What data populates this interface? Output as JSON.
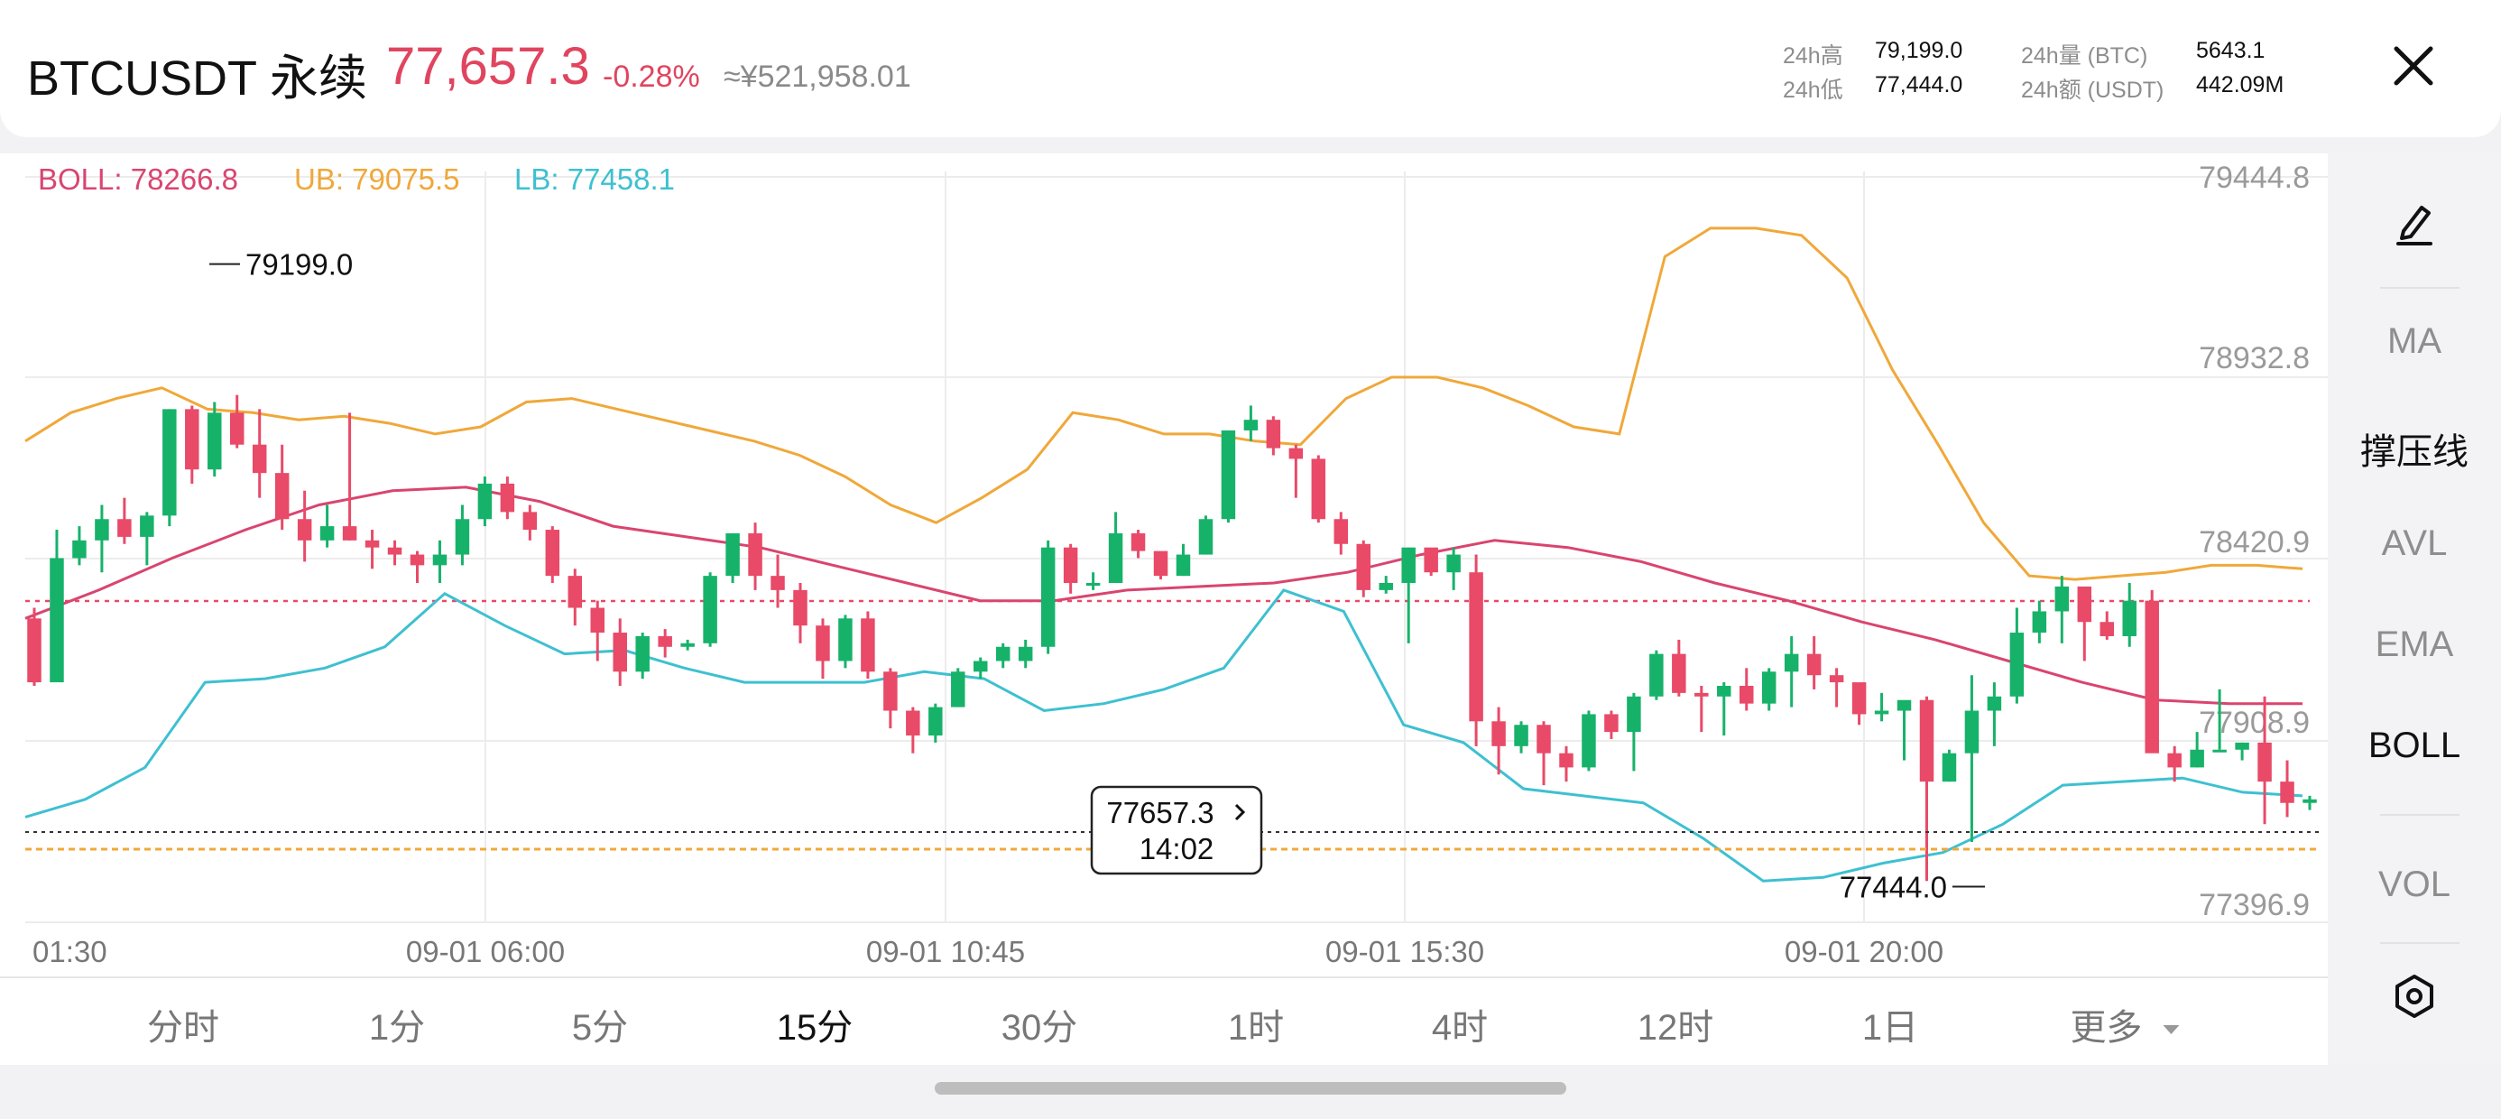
{
  "header": {
    "symbol": "BTCUSDT 永续",
    "price": "77,657.3",
    "change_pct": "-0.28%",
    "cny_price": "≈¥521,958.01",
    "stats": {
      "high_label": "24h高",
      "high_value": "79,199.0",
      "low_label": "24h低",
      "low_value": "77,444.0",
      "vol_btc_label": "24h量 (BTC)",
      "vol_btc_value": "5643.1",
      "vol_usdt_label": "24h额 (USDT)",
      "vol_usdt_value": "442.09M"
    }
  },
  "indicators": {
    "boll": "BOLL: 78266.8",
    "ub": "UB: 79075.5",
    "lb": "LB: 77458.1"
  },
  "price_axis": [
    "79444.8",
    "78932.8",
    "78420.9",
    "77908.9",
    "77396.9"
  ],
  "time_axis": [
    "01:30",
    "09-01 06:00",
    "09-01 10:45",
    "09-01 15:30",
    "09-01 20:00"
  ],
  "annotations": {
    "high": "79199.0",
    "low": "77444.0",
    "current_price": "77657.3",
    "countdown": "14:02"
  },
  "colors": {
    "up": "#17b26a",
    "down": "#e84a68",
    "boll_mid": "#d9456f",
    "boll_upper": "#f0a83a",
    "boll_lower": "#3ec0d0"
  },
  "side_panel": {
    "draw_icon": "pencil-icon",
    "items": [
      "MA",
      "撑压线",
      "AVL",
      "EMA",
      "BOLL",
      "VOL"
    ],
    "settings_icon": "settings-icon"
  },
  "timeframes": [
    "分时",
    "1分",
    "5分",
    "15分",
    "30分",
    "1时",
    "4时",
    "12时",
    "1日",
    "更多"
  ],
  "active_timeframe": "15分",
  "chart_data": {
    "type": "candlestick",
    "ylim": [
      77396.9,
      79444.8
    ],
    "candles": [
      [
        78200,
        78020,
        78230,
        78010
      ],
      [
        78020,
        78370,
        78450,
        78030
      ],
      [
        78370,
        78420,
        78460,
        78350
      ],
      [
        78420,
        78480,
        78520,
        78330
      ],
      [
        78480,
        78430,
        78540,
        78410
      ],
      [
        78430,
        78490,
        78500,
        78350
      ],
      [
        78490,
        78790,
        78790,
        78460
      ],
      [
        78790,
        78620,
        78800,
        78580
      ],
      [
        78620,
        78780,
        78810,
        78600
      ],
      [
        78780,
        78690,
        78830,
        78680
      ],
      [
        78690,
        78610,
        78790,
        78540
      ],
      [
        78610,
        78480,
        78690,
        78450
      ],
      [
        78480,
        78420,
        78560,
        78360
      ],
      [
        78420,
        78460,
        78520,
        78400
      ],
      [
        78460,
        78420,
        78780,
        78420
      ],
      [
        78420,
        78400,
        78450,
        78340
      ],
      [
        78400,
        78380,
        78420,
        78350
      ],
      [
        78380,
        78350,
        78390,
        78300
      ],
      [
        78350,
        78380,
        78420,
        78300
      ],
      [
        78380,
        78480,
        78520,
        78350
      ],
      [
        78480,
        78580,
        78600,
        78460
      ],
      [
        78580,
        78500,
        78600,
        78480
      ],
      [
        78500,
        78450,
        78520,
        78420
      ],
      [
        78450,
        78320,
        78460,
        78300
      ],
      [
        78320,
        78230,
        78340,
        78180
      ],
      [
        78230,
        78160,
        78250,
        78080
      ],
      [
        78160,
        78050,
        78200,
        78010
      ],
      [
        78050,
        78150,
        78160,
        78030
      ],
      [
        78150,
        78120,
        78170,
        78090
      ],
      [
        78120,
        78130,
        78140,
        78110
      ],
      [
        78130,
        78320,
        78330,
        78120
      ],
      [
        78320,
        78440,
        78440,
        78300
      ],
      [
        78440,
        78320,
        78470,
        78280
      ],
      [
        78320,
        78280,
        78380,
        78230
      ],
      [
        78280,
        78180,
        78300,
        78130
      ],
      [
        78180,
        78080,
        78200,
        78030
      ],
      [
        78080,
        78200,
        78210,
        78060
      ],
      [
        78200,
        78050,
        78220,
        78030
      ],
      [
        78050,
        77940,
        78060,
        77890
      ],
      [
        77940,
        77870,
        77950,
        77820
      ],
      [
        77870,
        77950,
        77960,
        77850
      ],
      [
        77950,
        78050,
        78060,
        77950
      ],
      [
        78050,
        78080,
        78090,
        78030
      ],
      [
        78080,
        78120,
        78130,
        78060
      ],
      [
        78080,
        78120,
        78140,
        78060
      ],
      [
        78120,
        78400,
        78420,
        78100
      ],
      [
        78400,
        78300,
        78410,
        78270
      ],
      [
        78300,
        78300,
        78330,
        78280
      ],
      [
        78300,
        78440,
        78500,
        78300
      ],
      [
        78440,
        78390,
        78450,
        78370
      ],
      [
        78390,
        78320,
        78330,
        78310
      ],
      [
        78320,
        78380,
        78410,
        78320
      ],
      [
        78380,
        78480,
        78490,
        78380
      ],
      [
        78480,
        78730,
        78730,
        78470
      ],
      [
        78730,
        78760,
        78800,
        78700
      ],
      [
        78760,
        78680,
        78770,
        78660
      ],
      [
        78680,
        78650,
        78690,
        78540
      ],
      [
        78650,
        78480,
        78660,
        78470
      ],
      [
        78480,
        78410,
        78500,
        78380
      ],
      [
        78410,
        78280,
        78420,
        78260
      ],
      [
        78280,
        78300,
        78320,
        78270
      ],
      [
        78300,
        78400,
        78400,
        78130
      ],
      [
        78400,
        78330,
        78350,
        78320
      ],
      [
        78330,
        78380,
        78400,
        78280
      ],
      [
        78330,
        77910,
        78380,
        77840
      ],
      [
        77910,
        77840,
        77950,
        77760
      ],
      [
        77840,
        77900,
        77910,
        77820
      ],
      [
        77900,
        77820,
        77910,
        77730
      ],
      [
        77820,
        77780,
        77840,
        77740
      ],
      [
        77780,
        77930,
        77940,
        77770
      ],
      [
        77930,
        77880,
        77940,
        77860
      ],
      [
        77880,
        77980,
        77990,
        77770
      ],
      [
        77980,
        78100,
        78110,
        77970
      ],
      [
        78100,
        77990,
        78140,
        77980
      ],
      [
        77990,
        77980,
        78010,
        77880
      ],
      [
        77980,
        78010,
        78020,
        77870
      ],
      [
        78010,
        77960,
        78060,
        77940
      ],
      [
        77960,
        78050,
        78060,
        77940
      ],
      [
        78050,
        78100,
        78150,
        77950
      ],
      [
        78100,
        78040,
        78150,
        78000
      ],
      [
        78040,
        78020,
        78060,
        77950
      ],
      [
        78020,
        77930,
        78000,
        77900
      ],
      [
        77930,
        77940,
        77990,
        77910
      ],
      [
        77940,
        77970,
        77960,
        77800
      ],
      [
        77970,
        77740,
        77980,
        77460
      ],
      [
        77740,
        77820,
        77830,
        77740
      ],
      [
        77820,
        77940,
        78040,
        77570
      ],
      [
        77940,
        77980,
        78020,
        77840
      ],
      [
        77980,
        78160,
        78230,
        77960
      ],
      [
        78160,
        78220,
        78250,
        78130
      ],
      [
        78220,
        78290,
        78320,
        78130
      ],
      [
        78290,
        78190,
        78210,
        78080
      ],
      [
        78190,
        78150,
        78220,
        78140
      ],
      [
        78150,
        78250,
        78300,
        78120
      ],
      [
        78250,
        77820,
        78280,
        77840
      ],
      [
        77820,
        77780,
        77840,
        77740
      ],
      [
        77780,
        77830,
        77880,
        77780
      ],
      [
        77830,
        77830,
        78000,
        77830
      ],
      [
        77830,
        77850,
        77850,
        77800
      ],
      [
        77850,
        77740,
        77980,
        77620
      ],
      [
        77740,
        77680,
        77800,
        77640
      ],
      [
        77680,
        77690,
        77700,
        77660
      ]
    ],
    "boll_upper": [
      78700,
      78780,
      78820,
      78850,
      78790,
      78780,
      78760,
      78770,
      78750,
      78720,
      78740,
      78810,
      78820,
      78790,
      78760,
      78730,
      78700,
      78660,
      78600,
      78520,
      78470,
      78540,
      78620,
      78780,
      78760,
      78720,
      78720,
      78700,
      78690,
      78820,
      78880,
      78880,
      78850,
      78800,
      78740,
      78720,
      79220,
      79300,
      79300,
      79280,
      79160,
      78900,
      78690,
      78470,
      78320,
      78310,
      78320,
      78330,
      78350,
      78350,
      78340
    ],
    "boll_mid": [
      78200,
      78280,
      78370,
      78450,
      78520,
      78560,
      78570,
      78530,
      78460,
      78430,
      78400,
      78350,
      78300,
      78250,
      78250,
      78280,
      78290,
      78300,
      78330,
      78380,
      78420,
      78400,
      78360,
      78300,
      78250,
      78190,
      78140,
      78080,
      78020,
      77970,
      77960,
      77960
    ],
    "boll_lower": [
      77640,
      77690,
      77780,
      78020,
      78030,
      78060,
      78120,
      78270,
      78180,
      78100,
      78110,
      78060,
      78020,
      78020,
      78020,
      78050,
      78030,
      77940,
      77960,
      78000,
      78060,
      78280,
      78220,
      77900,
      77850,
      77720,
      77700,
      77680,
      77580,
      77460,
      77470,
      77510,
      77540,
      77620,
      77730,
      77740,
      77750,
      77710,
      77700
    ]
  }
}
